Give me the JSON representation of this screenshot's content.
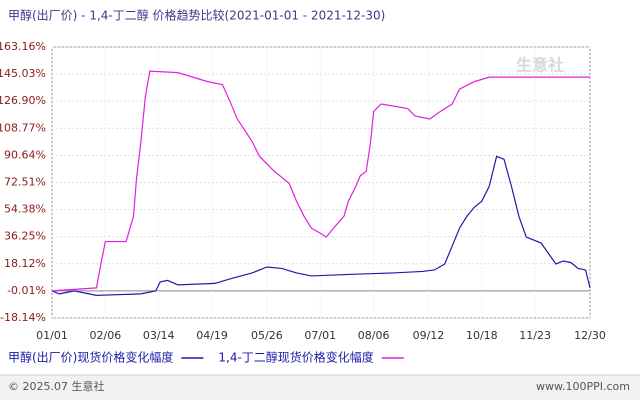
{
  "chart_data": {
    "type": "line",
    "title": "甲醇(出厂价) - 1,4-丁二醇 价格趋势比较(2021-01-01 - 2021-12-30)",
    "watermark": "生意社",
    "footer_left": "© 2025.07 生意社",
    "footer_right": "www.100PPI.com",
    "xlim": [
      0,
      363
    ],
    "xticks": [
      {
        "value": 0,
        "label": "01/01"
      },
      {
        "value": 36,
        "label": "02/06"
      },
      {
        "value": 72,
        "label": "03/14"
      },
      {
        "value": 108,
        "label": "04/19"
      },
      {
        "value": 145,
        "label": "05/26"
      },
      {
        "value": 181,
        "label": "07/01"
      },
      {
        "value": 217,
        "label": "08/06"
      },
      {
        "value": 254,
        "label": "09/12"
      },
      {
        "value": 290,
        "label": "10/18"
      },
      {
        "value": 326,
        "label": "11/23"
      },
      {
        "value": 363,
        "label": "12/30"
      }
    ],
    "ylim": [
      -18.14,
      163.16
    ],
    "yticks": [
      {
        "value": -18.14,
        "label": "-18.14%"
      },
      {
        "value": -0.01,
        "label": "-0.01%"
      },
      {
        "value": 18.12,
        "label": "18.12%"
      },
      {
        "value": 36.25,
        "label": "36.25%"
      },
      {
        "value": 54.38,
        "label": "54.38%"
      },
      {
        "value": 72.51,
        "label": "72.51%"
      },
      {
        "value": 90.64,
        "label": "90.64%"
      },
      {
        "value": 108.77,
        "label": "108.77%"
      },
      {
        "value": 126.9,
        "label": "126.90%"
      },
      {
        "value": 145.03,
        "label": "145.03%"
      },
      {
        "value": 163.16,
        "label": "163.16%"
      }
    ],
    "grid": true,
    "series": [
      {
        "name": "甲醇(出厂价)现货价格变化幅度",
        "color": "#1c1ca8",
        "x": [
          0,
          5,
          15,
          30,
          60,
          70,
          73,
          78,
          85,
          110,
          120,
          135,
          145,
          155,
          165,
          175,
          200,
          230,
          250,
          258,
          265,
          270,
          275,
          280,
          285,
          290,
          295,
          300,
          305,
          310,
          315,
          320,
          330,
          335,
          340,
          345,
          350,
          355,
          360,
          363
        ],
        "values": [
          0,
          -2,
          0,
          -3,
          -2,
          0,
          6,
          7,
          4,
          5,
          8,
          12,
          16,
          15,
          12,
          10,
          11,
          12,
          13,
          14,
          18,
          30,
          42,
          50,
          56,
          60,
          70,
          90,
          88,
          70,
          50,
          36,
          32,
          25,
          18,
          20,
          19,
          15,
          14,
          2
        ]
      },
      {
        "name": "1,4-丁二醇现货价格变化幅度",
        "color": "#e020e0",
        "x": [
          0,
          30,
          33,
          36,
          50,
          55,
          57,
          60,
          63,
          66,
          85,
          95,
          105,
          115,
          120,
          125,
          135,
          140,
          150,
          160,
          165,
          170,
          175,
          182,
          185,
          190,
          197,
          200,
          205,
          208,
          212,
          215,
          217,
          222,
          240,
          245,
          255,
          262,
          270,
          275,
          285,
          295,
          363
        ],
        "values": [
          0,
          2,
          18,
          33,
          33,
          50,
          75,
          100,
          130,
          147,
          146,
          143,
          140,
          138,
          127,
          115,
          100,
          90,
          80,
          72,
          60,
          50,
          42,
          38,
          36,
          42,
          50,
          60,
          70,
          77,
          80,
          100,
          120,
          125,
          122,
          117,
          115,
          120,
          125,
          135,
          140,
          143,
          143
        ]
      }
    ]
  }
}
